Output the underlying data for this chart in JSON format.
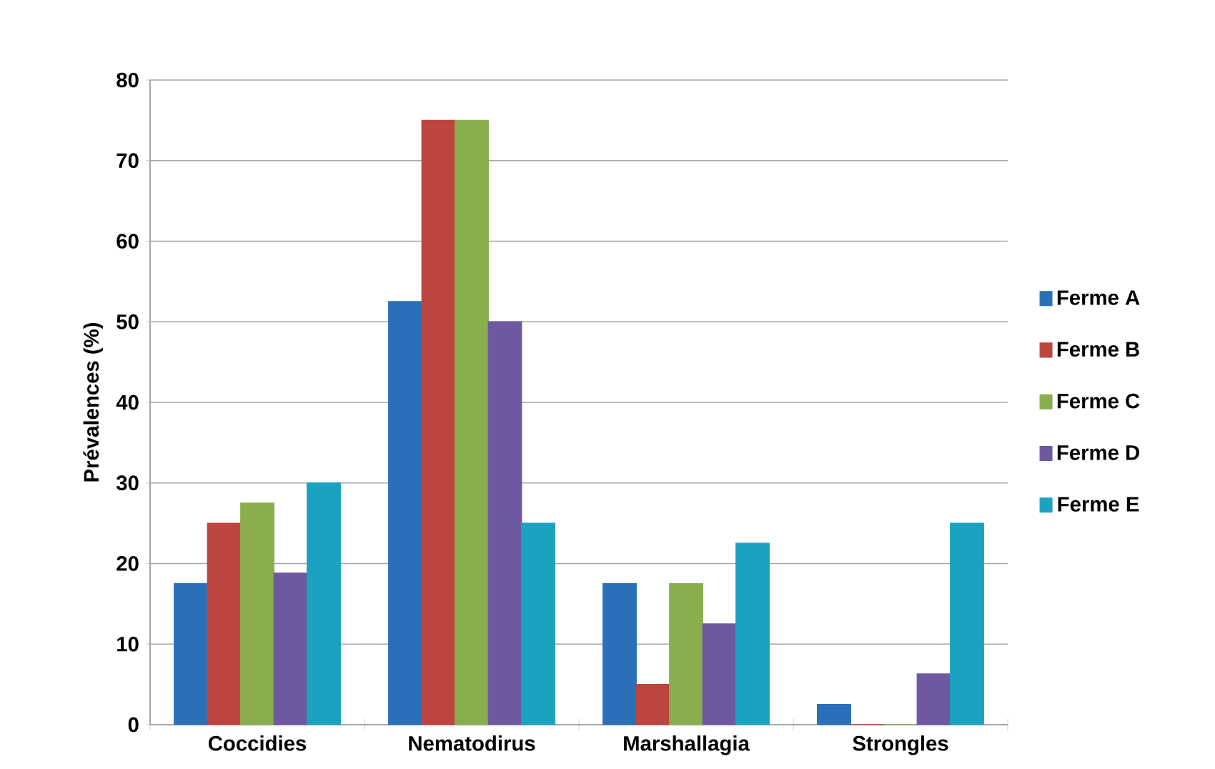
{
  "chart_data": {
    "type": "bar",
    "ylabel": "Prévalences (%)",
    "categories": [
      "Coccidies",
      "Nematodirus",
      "Marshallagia",
      "Strongles"
    ],
    "series": [
      {
        "name": "Ferme A",
        "color": "#2a70b8",
        "values": [
          17.5,
          52.5,
          17.5,
          2.5
        ]
      },
      {
        "name": "Ferme B",
        "color": "#bc4540",
        "values": [
          25,
          75,
          5,
          0
        ]
      },
      {
        "name": "Ferme C",
        "color": "#8aae4e",
        "values": [
          27.5,
          75,
          17.5,
          0
        ]
      },
      {
        "name": "Ferme D",
        "color": "#6e59a0",
        "values": [
          18.8,
          50,
          12.5,
          6.3
        ]
      },
      {
        "name": "Ferme E",
        "color": "#1ba2c0",
        "values": [
          30,
          25,
          22.5,
          25
        ]
      }
    ],
    "ylim": [
      0,
      80
    ],
    "yticks": [
      0,
      10,
      20,
      30,
      40,
      50,
      60,
      70,
      80
    ],
    "grid": "y",
    "legend": "right"
  }
}
